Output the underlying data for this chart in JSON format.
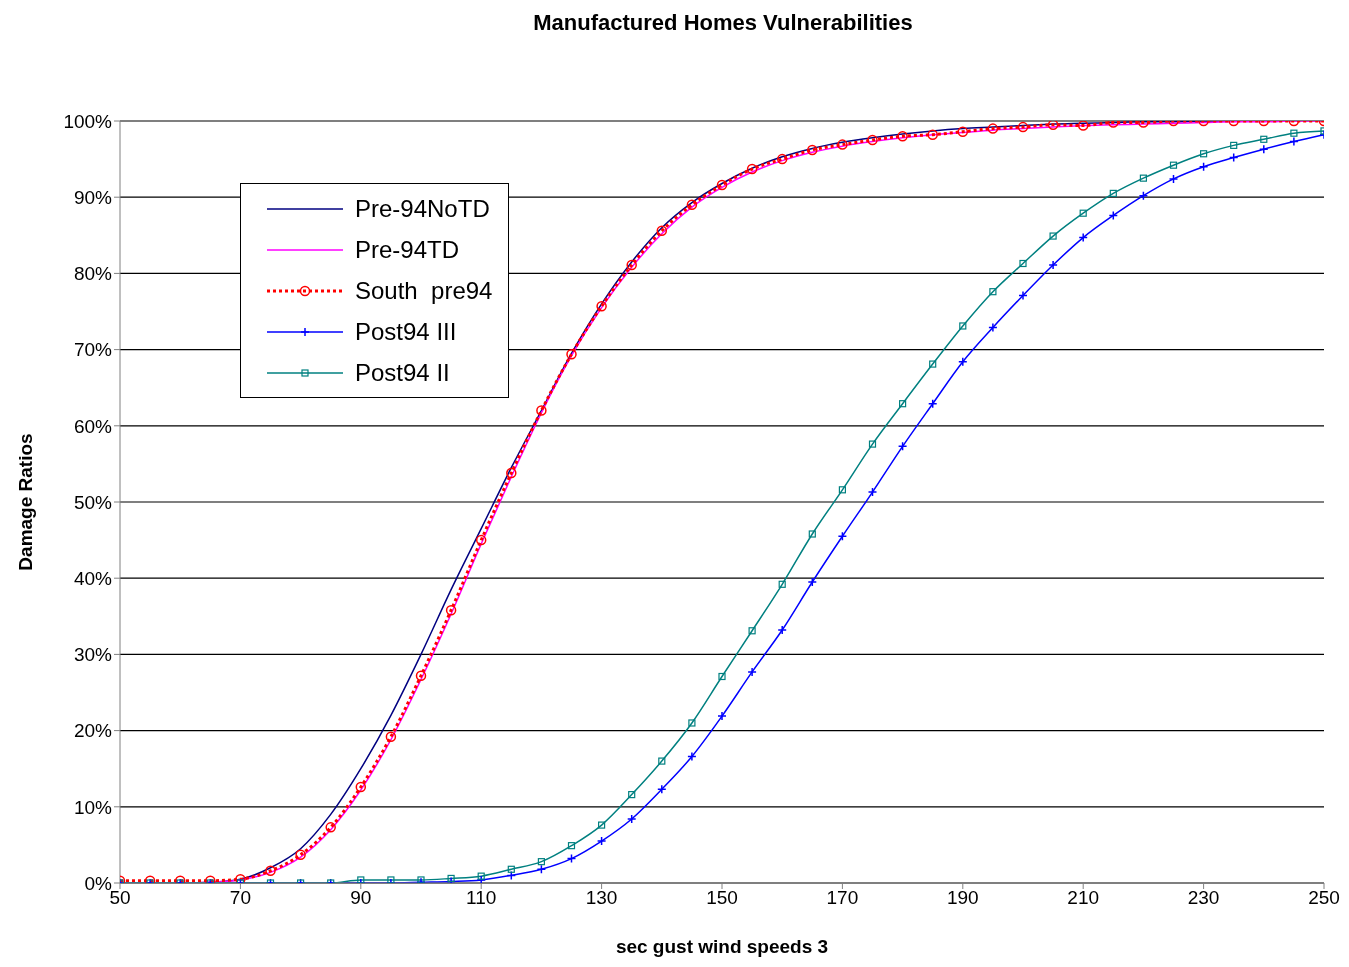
{
  "chart_data": {
    "type": "line",
    "title": "Manufactured Homes Vulnerabilities",
    "xlabel": "sec gust wind speeds 3",
    "ylabel": "Damage Ratios",
    "x": [
      50,
      55,
      60,
      65,
      70,
      75,
      80,
      85,
      90,
      95,
      100,
      105,
      110,
      115,
      120,
      125,
      130,
      135,
      140,
      145,
      150,
      155,
      160,
      165,
      170,
      175,
      180,
      185,
      190,
      195,
      200,
      205,
      210,
      215,
      220,
      225,
      230,
      235,
      240,
      245,
      250
    ],
    "xlim": [
      50,
      250
    ],
    "xticks": [
      50,
      70,
      90,
      110,
      130,
      150,
      170,
      190,
      210,
      230,
      250
    ],
    "ylim": [
      0,
      100
    ],
    "yticks": [
      {
        "value": 0,
        "label": "0%"
      },
      {
        "value": 10,
        "label": "10%"
      },
      {
        "value": 20,
        "label": "20%"
      },
      {
        "value": 30,
        "label": "30%"
      },
      {
        "value": 40,
        "label": "40%"
      },
      {
        "value": 50,
        "label": "50%"
      },
      {
        "value": 60,
        "label": "60%"
      },
      {
        "value": 70,
        "label": "70%"
      },
      {
        "value": 80,
        "label": "80%"
      },
      {
        "value": 90,
        "label": "90%"
      },
      {
        "value": 100,
        "label": "100%"
      }
    ],
    "grid": "y",
    "legend": "top left",
    "series": [
      {
        "name": "Pre-94NoTD",
        "color": "#000080",
        "marker": "none",
        "line_style": "solid",
        "values": [
          null,
          null,
          0,
          0.1,
          0.5,
          2,
          4.5,
          9,
          15,
          22,
          30,
          38.5,
          46.5,
          54.5,
          62,
          69.5,
          76,
          81.5,
          86,
          89.3,
          91.8,
          93.8,
          95.3,
          96.4,
          97.2,
          97.8,
          98.3,
          98.7,
          99,
          99.2,
          99.4,
          99.6,
          99.7,
          99.8,
          99.9,
          99.9,
          100,
          100,
          null,
          null,
          null
        ]
      },
      {
        "name": "Pre-94TD",
        "color": "#ff00ff",
        "marker": "none",
        "line_style": "solid",
        "values": [
          null,
          null,
          0,
          0.1,
          0.4,
          1.4,
          3.4,
          7,
          12.2,
          18.8,
          26.7,
          35.3,
          44.5,
          53.3,
          61.7,
          69.2,
          75.5,
          80.8,
          85.2,
          88.7,
          91.3,
          93.3,
          94.8,
          95.9,
          96.7,
          97.3,
          97.8,
          98.2,
          98.5,
          98.8,
          99,
          99.2,
          99.4,
          99.5,
          99.6,
          99.7,
          99.8,
          99.9,
          99.9,
          100,
          100
        ]
      },
      {
        "name": "South  pre94",
        "color": "#ff0000",
        "marker": "circle",
        "line_style": "dotted",
        "values": [
          0.3,
          0.3,
          0.3,
          0.3,
          0.5,
          1.6,
          3.7,
          7.3,
          12.6,
          19.2,
          27.2,
          35.8,
          45,
          53.8,
          62,
          69.4,
          75.7,
          81.1,
          85.6,
          89,
          91.6,
          93.7,
          95,
          96.2,
          96.9,
          97.5,
          98,
          98.2,
          98.6,
          99,
          99.2,
          99.5,
          99.4,
          99.8,
          99.8,
          100,
          100,
          100,
          100,
          100,
          100
        ]
      },
      {
        "name": "Post94 III",
        "color": "#0000ff",
        "marker": "cross",
        "line_style": "solid",
        "values": [
          0,
          0,
          0,
          0,
          0,
          0,
          0,
          0,
          0,
          0,
          0.1,
          0.2,
          0.4,
          1,
          1.8,
          3.2,
          5.5,
          8.4,
          12.3,
          16.6,
          21.9,
          27.7,
          33.2,
          39.5,
          45.5,
          51.3,
          57.3,
          62.9,
          68.4,
          72.9,
          77.1,
          81.1,
          84.7,
          87.6,
          90.2,
          92.4,
          94,
          95.2,
          96.3,
          97.3,
          98.2
        ]
      },
      {
        "name": "Post94 II",
        "color": "#008080",
        "marker": "square",
        "line_style": "solid",
        "values": [
          0,
          0,
          0,
          0,
          0,
          0,
          0,
          0,
          0.4,
          0.4,
          0.4,
          0.6,
          0.9,
          1.8,
          2.8,
          4.9,
          7.6,
          11.6,
          16,
          21,
          27.1,
          33.1,
          39.2,
          45.8,
          51.6,
          57.6,
          62.9,
          68.1,
          73.1,
          77.6,
          81.3,
          84.9,
          87.9,
          90.5,
          92.5,
          94.2,
          95.7,
          96.8,
          97.6,
          98.4,
          98.7
        ]
      }
    ]
  }
}
